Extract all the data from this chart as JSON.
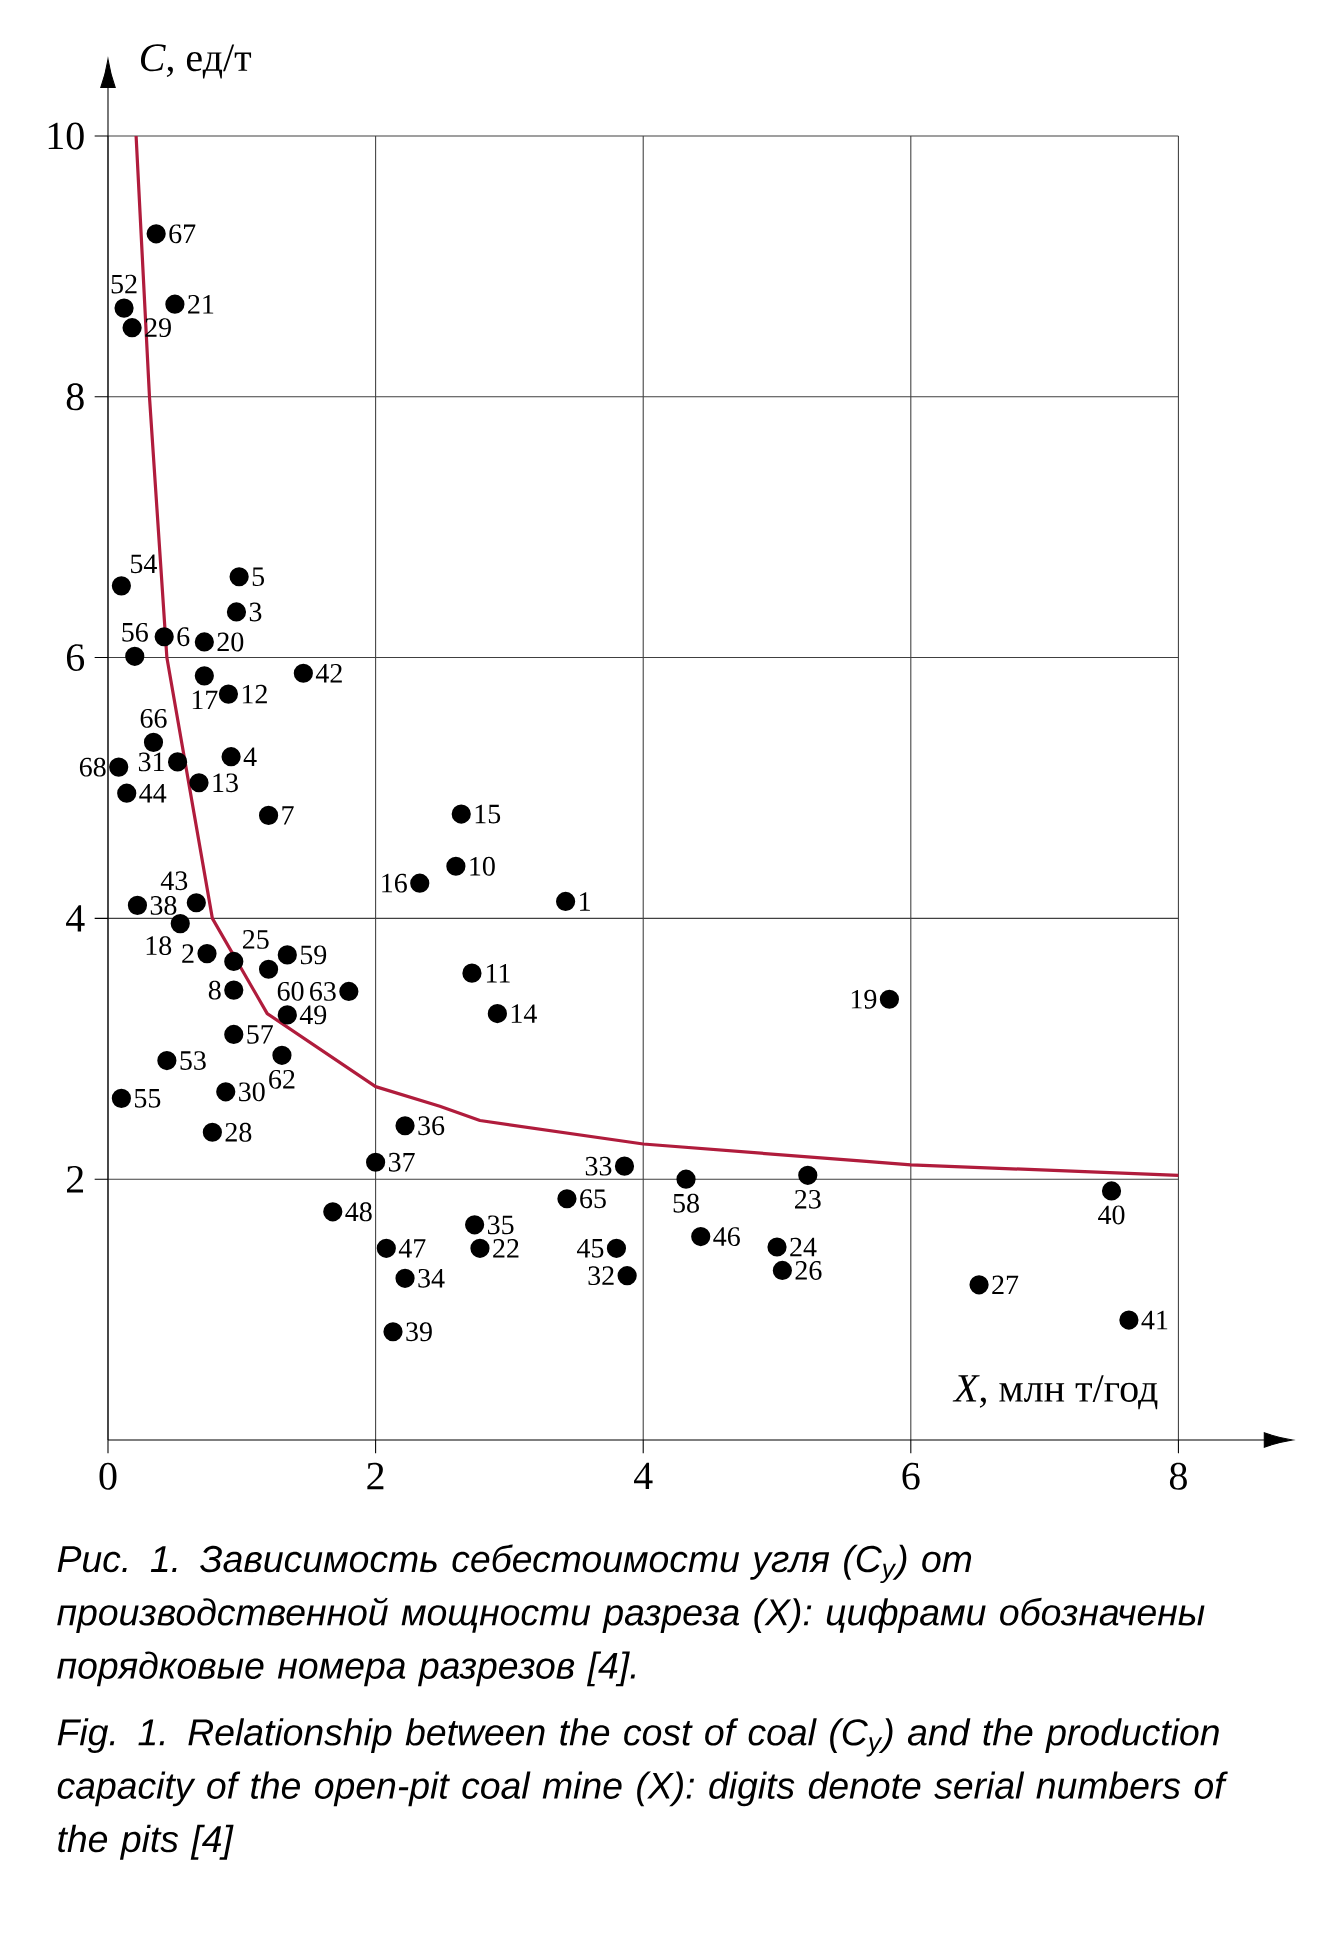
{
  "chart_data": {
    "type": "scatter",
    "xlabel": "*X*, млн т/год",
    "ylabel": "*C*, ед/т",
    "xlim": [
      0,
      8
    ],
    "ylim": [
      0,
      10
    ],
    "xticks": [
      0,
      2,
      4,
      6,
      8
    ],
    "yticks": [
      2,
      4,
      6,
      8,
      10
    ],
    "grid": true,
    "series": [
      {
        "color": "#000000",
        "marker": "circle",
        "x": [
          3.42,
          0.74,
          0.96,
          0.92,
          0.98,
          0.42,
          1.2,
          0.94,
          2.6,
          2.72,
          0.9,
          0.68,
          2.91,
          2.64,
          2.33,
          0.72,
          0.54,
          5.84,
          0.72,
          0.5,
          2.78,
          5.23,
          5.0,
          0.94,
          5.04,
          6.51,
          0.78,
          0.18,
          0.88,
          0.52,
          3.88,
          3.86,
          2.22,
          2.74,
          2.22,
          2.0,
          0.22,
          2.13,
          7.5,
          7.63,
          1.46,
          0.66,
          0.14,
          3.8,
          4.43,
          2.08,
          1.68,
          1.34,
          0.12,
          0.44,
          0.1,
          0.1,
          0.2,
          0.94,
          4.32,
          1.34,
          1.2,
          1.3,
          1.8,
          3.43,
          0.34,
          0.36,
          0.08
        ],
        "values": [
          4.13,
          3.73,
          6.35,
          5.24,
          6.62,
          6.16,
          4.79,
          3.45,
          4.4,
          3.58,
          5.72,
          5.04,
          3.27,
          4.8,
          4.27,
          5.86,
          3.96,
          3.38,
          6.12,
          8.71,
          1.47,
          2.03,
          1.48,
          3.67,
          1.3,
          1.19,
          2.36,
          8.53,
          2.67,
          5.2,
          1.26,
          2.1,
          1.24,
          1.65,
          2.41,
          2.13,
          4.1,
          0.83,
          1.91,
          0.92,
          5.88,
          4.12,
          4.96,
          1.47,
          1.56,
          1.47,
          1.75,
          3.26,
          8.68,
          2.91,
          6.55,
          2.62,
          6.01,
          3.11,
          2.0,
          3.72,
          3.61,
          2.95,
          3.44,
          1.85,
          5.35,
          9.25,
          5.16
        ]
      },
      {
        "type": "line",
        "color": "#b01c3c",
        "marker": "none",
        "x": [
          0.21,
          0.31,
          0.44,
          0.78,
          1.19,
          2.0,
          2.48,
          2.78,
          4.0,
          5.62,
          6.0,
          8.0
        ],
        "values": [
          10,
          8,
          6,
          4,
          3.27,
          2.71,
          2.56,
          2.45,
          2.27,
          2.14,
          2.11,
          2.03
        ]
      }
    ],
    "annotations": [
      {
        "text": "1",
        "x": 3.42,
        "y": 4.13
      },
      {
        "text": "2",
        "x": 0.74,
        "y": 3.73
      },
      {
        "text": "3",
        "x": 0.96,
        "y": 6.35
      },
      {
        "text": "4",
        "x": 0.92,
        "y": 5.24
      },
      {
        "text": "5",
        "x": 0.98,
        "y": 6.62
      },
      {
        "text": "6",
        "x": 0.42,
        "y": 6.16
      },
      {
        "text": "7",
        "x": 1.2,
        "y": 4.79
      },
      {
        "text": "8",
        "x": 0.94,
        "y": 3.45
      },
      {
        "text": "10",
        "x": 2.6,
        "y": 4.4
      },
      {
        "text": "11",
        "x": 2.72,
        "y": 3.58
      },
      {
        "text": "12",
        "x": 0.9,
        "y": 5.72
      },
      {
        "text": "13",
        "x": 0.68,
        "y": 5.04
      },
      {
        "text": "14",
        "x": 2.91,
        "y": 3.27
      },
      {
        "text": "15",
        "x": 2.64,
        "y": 4.8
      },
      {
        "text": "16",
        "x": 2.33,
        "y": 4.27
      },
      {
        "text": "17",
        "x": 0.72,
        "y": 5.86
      },
      {
        "text": "18",
        "x": 0.54,
        "y": 3.96
      },
      {
        "text": "19",
        "x": 5.84,
        "y": 3.38
      },
      {
        "text": "20",
        "x": 0.72,
        "y": 6.12
      },
      {
        "text": "21",
        "x": 0.5,
        "y": 8.71
      },
      {
        "text": "22",
        "x": 2.78,
        "y": 1.47
      },
      {
        "text": "23",
        "x": 5.23,
        "y": 2.03
      },
      {
        "text": "24",
        "x": 5.0,
        "y": 1.48
      },
      {
        "text": "25",
        "x": 0.94,
        "y": 3.67
      },
      {
        "text": "26",
        "x": 5.04,
        "y": 1.3
      },
      {
        "text": "27",
        "x": 6.51,
        "y": 1.19
      },
      {
        "text": "28",
        "x": 0.78,
        "y": 2.36
      },
      {
        "text": "29",
        "x": 0.18,
        "y": 8.53
      },
      {
        "text": "30",
        "x": 0.88,
        "y": 2.67
      },
      {
        "text": "31",
        "x": 0.52,
        "y": 5.2
      },
      {
        "text": "32",
        "x": 3.88,
        "y": 1.26
      },
      {
        "text": "33",
        "x": 3.86,
        "y": 2.1
      },
      {
        "text": "34",
        "x": 2.22,
        "y": 1.24
      },
      {
        "text": "35",
        "x": 2.74,
        "y": 1.65
      },
      {
        "text": "36",
        "x": 2.22,
        "y": 2.41
      },
      {
        "text": "37",
        "x": 2.0,
        "y": 2.13
      },
      {
        "text": "38",
        "x": 0.22,
        "y": 4.1
      },
      {
        "text": "39",
        "x": 2.13,
        "y": 0.83
      },
      {
        "text": "40",
        "x": 7.5,
        "y": 1.91
      },
      {
        "text": "41",
        "x": 7.63,
        "y": 0.92
      },
      {
        "text": "42",
        "x": 1.46,
        "y": 5.88
      },
      {
        "text": "43",
        "x": 0.66,
        "y": 4.12
      },
      {
        "text": "44",
        "x": 0.14,
        "y": 4.96
      },
      {
        "text": "45",
        "x": 3.8,
        "y": 1.47
      },
      {
        "text": "46",
        "x": 4.43,
        "y": 1.56
      },
      {
        "text": "47",
        "x": 2.08,
        "y": 1.47
      },
      {
        "text": "48",
        "x": 1.68,
        "y": 1.75
      },
      {
        "text": "49",
        "x": 1.34,
        "y": 3.26
      },
      {
        "text": "52",
        "x": 0.12,
        "y": 8.68
      },
      {
        "text": "53",
        "x": 0.44,
        "y": 2.91
      },
      {
        "text": "54",
        "x": 0.1,
        "y": 6.55
      },
      {
        "text": "55",
        "x": 0.1,
        "y": 2.62
      },
      {
        "text": "56",
        "x": 0.2,
        "y": 6.01
      },
      {
        "text": "57",
        "x": 0.94,
        "y": 3.11
      },
      {
        "text": "58",
        "x": 4.32,
        "y": 2.0
      },
      {
        "text": "59",
        "x": 1.34,
        "y": 3.72
      },
      {
        "text": "60",
        "x": 1.2,
        "y": 3.61
      },
      {
        "text": "62",
        "x": 1.3,
        "y": 2.95
      },
      {
        "text": "63",
        "x": 1.8,
        "y": 3.44
      },
      {
        "text": "65",
        "x": 3.43,
        "y": 1.85
      },
      {
        "text": "66",
        "x": 0.34,
        "y": 5.35
      },
      {
        "text": "67",
        "x": 0.36,
        "y": 9.25
      },
      {
        "text": "68",
        "x": 0.08,
        "y": 5.16
      },
      "Рис. 1. Зависимость себестоимости угля (C$_{у}$) от производственной мощности разреза (X): цифрами обозначены порядковые номера разрезов [4].",
      "Fig. 1. Relationship between the cost of coal (C$_{у}$) and the production capacity of the open-pit coal mine (X): digits denote serial numbers of the pits [4]"
    ]
  }
}
